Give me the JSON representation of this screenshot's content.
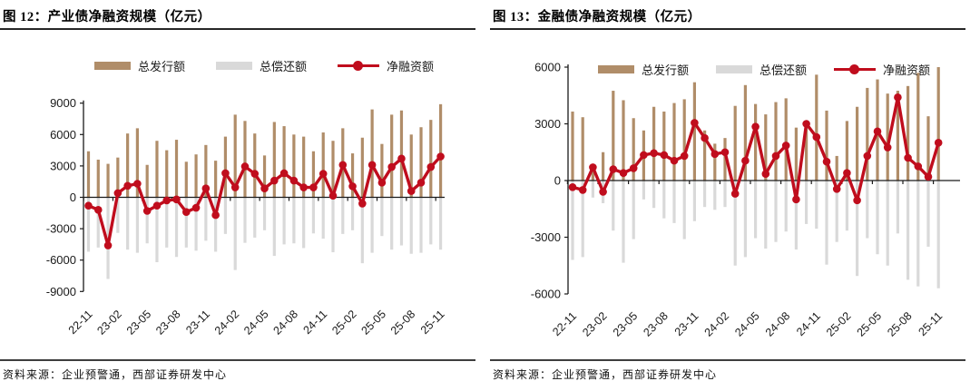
{
  "source_note": "资料来源：企业预警通，西部证券研发中心",
  "legend": {
    "issuance_label": "总发行额",
    "repayment_label": "总偿还额",
    "net_label": "净融资额"
  },
  "colors": {
    "issuance": "#b08d69",
    "repayment": "#d9d9d9",
    "net": "#c00d1d",
    "axis": "#1a1a1a"
  },
  "chart_data": [
    {
      "type": "bar+line",
      "title": "图 12：产业债净融资规模（亿元）",
      "unit": "亿元",
      "categories": [
        "22-11",
        "22-12",
        "23-01",
        "23-02",
        "23-03",
        "23-04",
        "23-05",
        "23-06",
        "23-07",
        "23-08",
        "23-09",
        "23-10",
        "23-11",
        "23-12",
        "24-01",
        "24-02",
        "24-03",
        "24-04",
        "24-05",
        "24-06",
        "24-07",
        "24-08",
        "24-09",
        "24-10",
        "24-11",
        "24-12",
        "25-01",
        "25-02",
        "25-03",
        "25-04",
        "25-05",
        "25-06",
        "25-07",
        "25-08",
        "25-09",
        "25-10",
        "25-11"
      ],
      "x_tick_labels": [
        "22-11",
        "23-02",
        "23-05",
        "23-08",
        "23-11",
        "24-02",
        "24-05",
        "24-08",
        "24-11",
        "25-02",
        "25-05",
        "25-08",
        "25-11"
      ],
      "series": [
        {
          "name": "总发行额",
          "type": "bar",
          "color": "#b08d69",
          "values": [
            4400,
            3600,
            3200,
            3800,
            6100,
            6600,
            3100,
            5400,
            4500,
            5500,
            3400,
            4100,
            5000,
            3500,
            5800,
            7900,
            7300,
            6100,
            4000,
            7200,
            6800,
            6000,
            5800,
            4400,
            6200,
            5400,
            6600,
            4200,
            5700,
            8400,
            5100,
            7900,
            8300,
            6000,
            6700,
            7400,
            8900
          ]
        },
        {
          "name": "总偿还额",
          "type": "bar",
          "color": "#d9d9d9",
          "values": [
            -5200,
            -4800,
            -7800,
            -3400,
            -5000,
            -5300,
            -4400,
            -6200,
            -4800,
            -5700,
            -4800,
            -5100,
            -4150,
            -5200,
            -3500,
            -6950,
            -4350,
            -3850,
            -3150,
            -5600,
            -4500,
            -4400,
            -4850,
            -3450,
            -3950,
            -5250,
            -3500,
            -3150,
            -6300,
            -5300,
            -3700,
            -5000,
            -4600,
            -5400,
            -5300,
            -4500,
            -5000
          ]
        },
        {
          "name": "净融资额",
          "type": "line",
          "color": "#c00d1d",
          "values": [
            -800,
            -1200,
            -4600,
            400,
            1100,
            1300,
            -1300,
            -800,
            -300,
            -200,
            -1400,
            -1000,
            850,
            -1700,
            2300,
            950,
            2950,
            2250,
            850,
            1600,
            2300,
            1600,
            950,
            950,
            2250,
            150,
            3100,
            1050,
            -600,
            3100,
            1400,
            2900,
            3700,
            600,
            1400,
            2900,
            3900
          ]
        }
      ],
      "ylim": [
        -9000,
        9000
      ],
      "yticks": [
        9000,
        6000,
        3000,
        0,
        -3000,
        -6000,
        -9000
      ],
      "legend_position": "top",
      "grid": false
    },
    {
      "type": "bar+line",
      "title": "图 13：金融债净融资规模（亿元）",
      "unit": "亿元",
      "categories": [
        "22-11",
        "22-12",
        "23-01",
        "23-02",
        "23-03",
        "23-04",
        "23-05",
        "23-06",
        "23-07",
        "23-08",
        "23-09",
        "23-10",
        "23-11",
        "23-12",
        "24-01",
        "24-02",
        "24-03",
        "24-04",
        "24-05",
        "24-06",
        "24-07",
        "24-08",
        "24-09",
        "24-10",
        "24-11",
        "24-12",
        "25-01",
        "25-02",
        "25-03",
        "25-04",
        "25-05",
        "25-06",
        "25-07",
        "25-08",
        "25-09",
        "25-10",
        "25-11"
      ],
      "x_tick_labels": [
        "22-11",
        "23-02",
        "23-05",
        "23-08",
        "23-11",
        "24-02",
        "24-05",
        "24-08",
        "24-11",
        "25-02",
        "25-05",
        "25-08",
        "25-11"
      ],
      "series": [
        {
          "name": "总发行额",
          "type": "bar",
          "color": "#b08d69",
          "values": [
            3650,
            3350,
            750,
            1500,
            4750,
            4250,
            3300,
            2650,
            3900,
            3650,
            4100,
            4300,
            5200,
            2650,
            1950,
            2250,
            3950,
            5050,
            4050,
            3500,
            4150,
            4350,
            2800,
            3100,
            5600,
            3700,
            1300,
            3150,
            3900,
            4900,
            5350,
            4600,
            4750,
            5000,
            5700,
            3400,
            6000
          ]
        },
        {
          "name": "总偿还额",
          "type": "bar",
          "color": "#d9d9d9",
          "values": [
            -4200,
            -4050,
            -900,
            -1200,
            -2650,
            -4350,
            -3100,
            -1000,
            -1450,
            -2000,
            -2250,
            -3100,
            -2150,
            -1400,
            -1550,
            -1400,
            -4500,
            -4050,
            -3050,
            -3600,
            -3250,
            -2700,
            -3650,
            -2300,
            -2550,
            -4450,
            -3250,
            -2650,
            -5050,
            -3050,
            -3900,
            -4500,
            -2800,
            -5250,
            -5600,
            -3500,
            -5700
          ]
        },
        {
          "name": "净融资额",
          "type": "line",
          "color": "#c00d1d",
          "values": [
            -350,
            -500,
            700,
            -600,
            600,
            400,
            650,
            1350,
            1450,
            1350,
            1050,
            1300,
            3050,
            2250,
            1400,
            1500,
            -700,
            1050,
            2850,
            350,
            1300,
            1850,
            -1000,
            3000,
            2300,
            1000,
            -450,
            400,
            -1050,
            1300,
            2600,
            1750,
            4400,
            1200,
            750,
            200,
            2000
          ]
        }
      ],
      "ylim": [
        -6000,
        6000
      ],
      "yticks": [
        6000,
        3000,
        0,
        -3000,
        -6000
      ],
      "legend_position": "top",
      "grid": false
    }
  ]
}
